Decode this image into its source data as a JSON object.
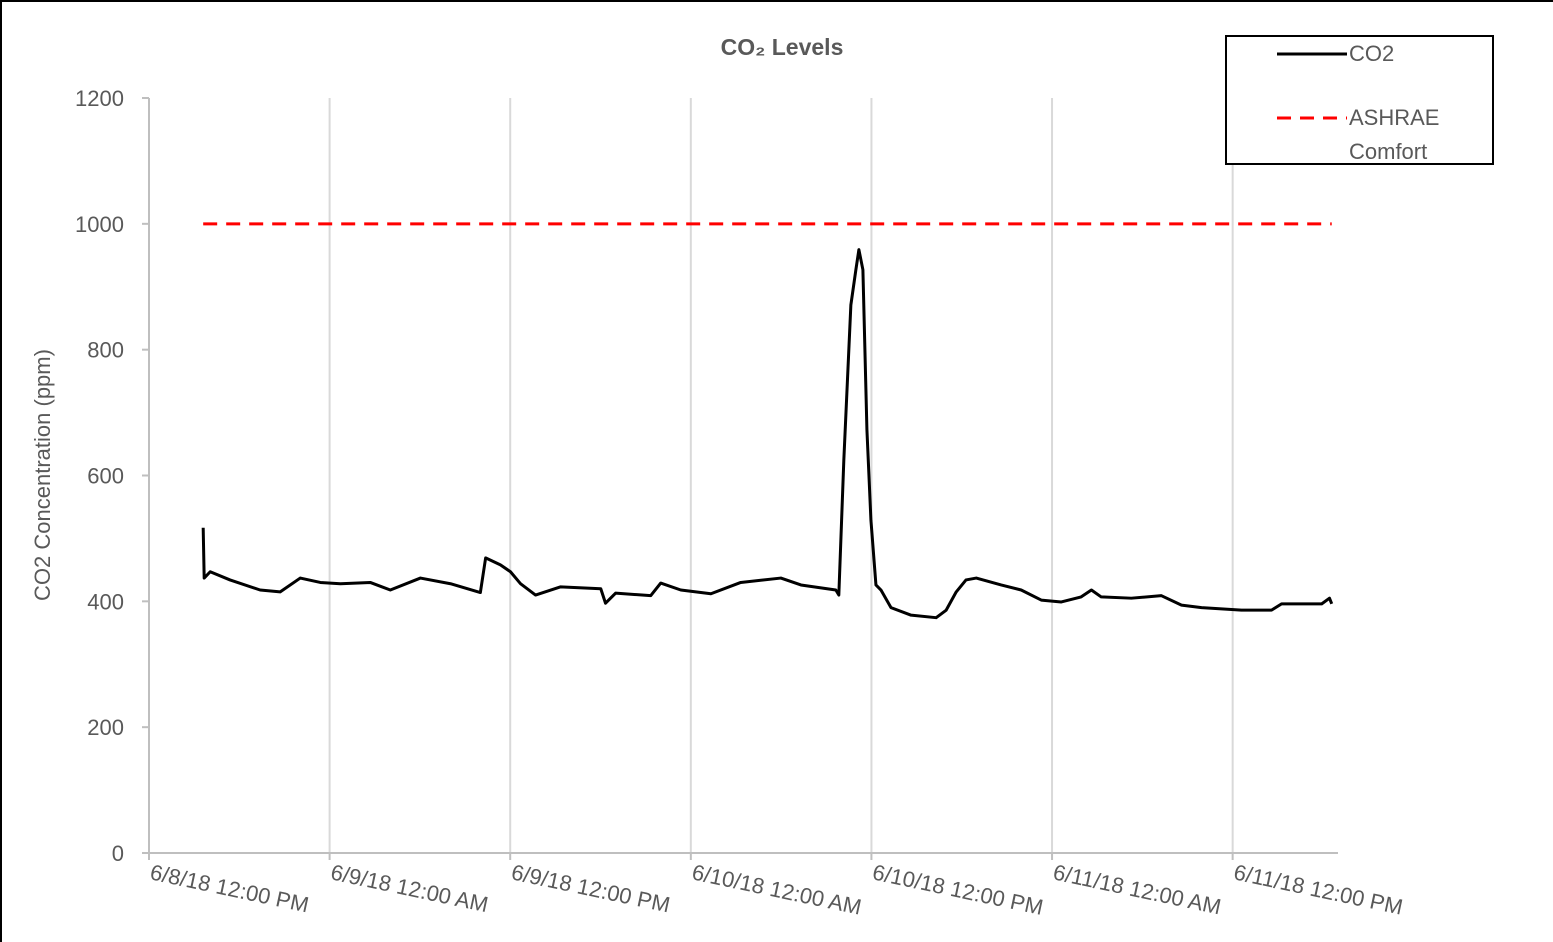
{
  "chart_data": {
    "type": "line",
    "title": "CO₂ Levels",
    "ylabel": "CO2 Concentration (ppm)",
    "ylim": [
      0,
      1200
    ],
    "yticks": [
      0,
      200,
      400,
      600,
      800,
      1000,
      1200
    ],
    "xlim": [
      "6/8/18 12:00 PM",
      "6/11/18 7:00 PM"
    ],
    "xticks": [
      "6/8/18 12:00 PM",
      "6/9/18 12:00 AM",
      "6/9/18 12:00 PM",
      "6/10/18 12:00 AM",
      "6/10/18 12:00 PM",
      "6/11/18 12:00 AM",
      "6/11/18 12:00 PM"
    ],
    "grid": true,
    "legend": "top-right",
    "series": [
      {
        "name": "CO2",
        "color": "#000000",
        "style": "solid",
        "x": [
          "6/8/18 3:36 PM",
          "6/8/18 3:40 PM",
          "6/8/18 4:04 PM",
          "6/8/18 5:23 PM",
          "6/8/18 7:23 PM",
          "6/8/18 8:43 PM",
          "6/8/18 10:03 PM",
          "6/8/18 11:23 PM",
          "6/9/18 12:43 AM",
          "6/9/18 2:42 AM",
          "6/9/18 4:02 AM",
          "6/9/18 6:02 AM",
          "6/9/18 8:02 AM",
          "6/9/18 10:01 AM",
          "6/9/18 10:22 AM",
          "6/9/18 11:21 AM",
          "6/9/18 12:01 PM",
          "6/9/18 12:41 PM",
          "6/9/18 1:41 PM",
          "6/9/18 3:21 PM",
          "6/9/18 6:01 PM",
          "6/9/18 6:20 PM",
          "6/9/18 7:00 PM",
          "6/9/18 9:20 PM",
          "6/9/18 10:00 PM",
          "6/9/18 11:20 PM",
          "6/10/18 1:20 AM",
          "6/10/18 3:19 AM",
          "6/10/18 5:59 AM",
          "6/10/18 7:19 AM",
          "6/10/18 9:38 AM",
          "6/10/18 9:50 AM",
          "6/10/18 10:10 AM",
          "6/10/18 10:38 AM",
          "6/10/18 10:58 AM",
          "6/10/18 11:10 AM",
          "6/10/18 11:26 AM",
          "6/10/18 11:42 AM",
          "6/10/18 11:58 AM",
          "6/10/18 12:18 PM",
          "6/10/18 12:38 PM",
          "6/10/18 1:18 PM",
          "6/10/18 2:38 PM",
          "6/10/18 4:18 PM",
          "6/10/18 4:58 PM",
          "6/10/18 5:38 PM",
          "6/10/18 6:17 PM",
          "6/10/18 6:58 PM",
          "6/10/18 8:37 PM",
          "6/10/18 9:57 PM",
          "6/10/18 11:17 PM",
          "6/11/18 12:37 AM",
          "6/11/18 1:56 AM",
          "6/11/18 2:37 AM",
          "6/11/18 3:16 AM",
          "6/11/18 5:16 AM",
          "6/11/18 7:16 AM",
          "6/11/18 8:36 AM",
          "6/11/18 9:56 AM",
          "6/11/18 12:35 PM",
          "6/11/18 2:35 PM",
          "6/11/18 3:15 PM",
          "6/11/18 5:55 PM",
          "6/11/18 6:26 PM",
          "6/11/18 6:35 PM"
        ],
        "values": [
          517,
          437,
          447,
          434,
          418,
          415,
          437,
          430,
          428,
          430,
          418,
          437,
          428,
          414,
          469,
          458,
          447,
          428,
          410,
          423,
          420,
          397,
          413,
          409,
          429,
          418,
          412,
          430,
          437,
          426,
          418,
          410,
          625,
          871,
          927,
          959,
          927,
          673,
          529,
          426,
          418,
          390,
          378,
          374,
          386,
          415,
          434,
          437,
          426,
          418,
          402,
          399,
          407,
          418,
          407,
          405,
          409,
          394,
          390,
          386,
          386,
          396,
          396,
          405,
          396
        ]
      },
      {
        "name": "ASHRAE Comfort",
        "color": "#ff0000",
        "style": "dashed",
        "x": [
          "6/8/18 3:36 PM",
          "6/11/18 6:35 PM"
        ],
        "values": [
          1000,
          1000
        ]
      }
    ]
  }
}
